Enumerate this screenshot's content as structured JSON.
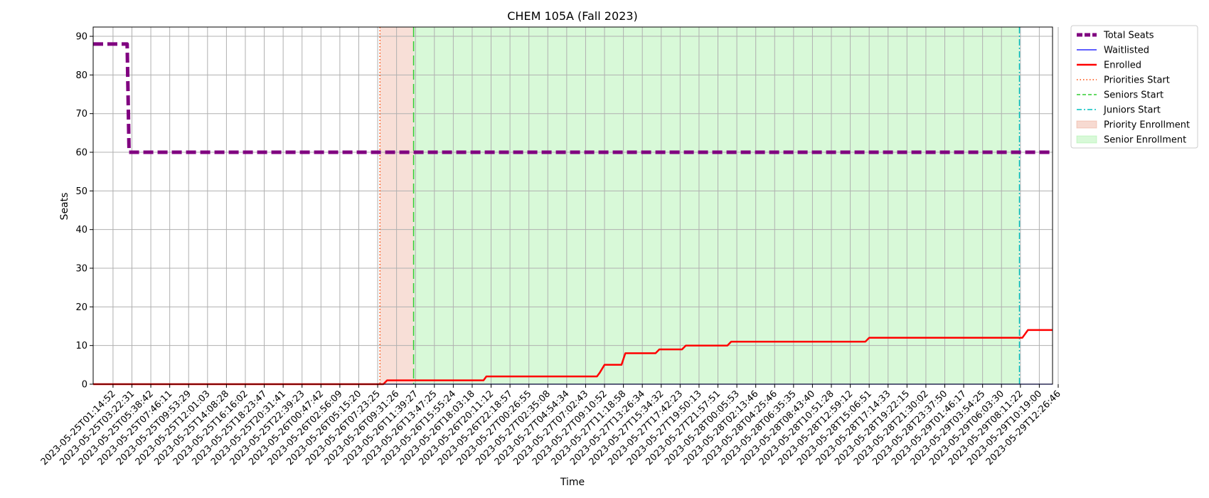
{
  "chart_data": {
    "type": "line",
    "title": "CHEM 105A (Fall 2023)",
    "xlabel": "Time",
    "ylabel": "Seats",
    "ylim": [
      0,
      92.4
    ],
    "yticks": [
      0,
      10,
      20,
      30,
      40,
      50,
      60,
      70,
      80,
      90
    ],
    "grid": true,
    "legend_placement": "outside right, top",
    "x_tick_labels": [
      "2023-05-25T01:14:52",
      "2023-05-25T03:22:31",
      "2023-05-25T05:38:42",
      "2023-05-25T07:46:11",
      "2023-05-25T09:53:29",
      "2023-05-25T12:01:03",
      "2023-05-25T14:08:28",
      "2023-05-25T16:16:02",
      "2023-05-25T18:23:47",
      "2023-05-25T20:31:41",
      "2023-05-25T22:39:23",
      "2023-05-26T00:47:42",
      "2023-05-26T02:56:09",
      "2023-05-26T05:15:20",
      "2023-05-26T07:23:25",
      "2023-05-26T09:31:26",
      "2023-05-26T11:39:27",
      "2023-05-26T13:47:25",
      "2023-05-26T15:55:24",
      "2023-05-26T18:03:18",
      "2023-05-26T20:11:12",
      "2023-05-26T22:18:57",
      "2023-05-27T00:26:55",
      "2023-05-27T02:35:08",
      "2023-05-27T04:54:34",
      "2023-05-27T07:02:43",
      "2023-05-27T09:10:52",
      "2023-05-27T11:18:58",
      "2023-05-27T13:26:34",
      "2023-05-27T15:34:32",
      "2023-05-27T17:42:23",
      "2023-05-27T19:50:13",
      "2023-05-27T21:57:51",
      "2023-05-28T00:05:53",
      "2023-05-28T02:13:46",
      "2023-05-28T04:25:46",
      "2023-05-28T06:35:35",
      "2023-05-28T08:43:40",
      "2023-05-28T10:51:28",
      "2023-05-28T12:59:12",
      "2023-05-28T15:06:51",
      "2023-05-28T17:14:33",
      "2023-05-28T19:22:15",
      "2023-05-28T21:30:02",
      "2023-05-28T23:37:50",
      "2023-05-29T01:46:17",
      "2023-05-29T03:54:25",
      "2023-05-29T06:03:30",
      "2023-05-29T08:11:22",
      "2023-05-29T10:19:00",
      "2023-05-29T12:26:46"
    ],
    "x_range_ticks": [
      -1.05,
      49.7
    ],
    "series": [
      {
        "name": "Total Seats",
        "color": "#800080",
        "style": "dashed",
        "points": [
          [
            -1.05,
            88
          ],
          [
            0.75,
            88
          ],
          [
            0.85,
            60
          ],
          [
            49.7,
            60
          ]
        ]
      },
      {
        "name": "Waitlisted",
        "color": "#0000ff",
        "style": "solid",
        "points": [
          [
            -1.05,
            0
          ],
          [
            49.7,
            0
          ]
        ]
      },
      {
        "name": "Enrolled",
        "color": "#ff0000",
        "style": "solid",
        "points": [
          [
            -1.05,
            0
          ],
          [
            14.3,
            0
          ],
          [
            14.5,
            1
          ],
          [
            19.6,
            1
          ],
          [
            19.75,
            2
          ],
          [
            25.6,
            2
          ],
          [
            25.75,
            3
          ],
          [
            26.0,
            5
          ],
          [
            26.9,
            5
          ],
          [
            27.1,
            8
          ],
          [
            28.7,
            8
          ],
          [
            28.9,
            9
          ],
          [
            30.1,
            9
          ],
          [
            30.3,
            10
          ],
          [
            32.5,
            10
          ],
          [
            32.7,
            11
          ],
          [
            39.8,
            11
          ],
          [
            40.0,
            12
          ],
          [
            48.1,
            12
          ],
          [
            48.4,
            14
          ],
          [
            49.7,
            14
          ]
        ]
      }
    ],
    "markers": [
      {
        "name": "Priorities Start",
        "x": 14.12,
        "color": "#ff4500",
        "style": "dotted"
      },
      {
        "name": "Seniors Start",
        "x": 15.9,
        "color": "#32cd32",
        "style": "dashed"
      },
      {
        "name": "Juniors Start",
        "x": 47.95,
        "color": "#00bfbf",
        "style": "dashdot"
      }
    ],
    "spans": [
      {
        "name": "Priority Enrollment",
        "x0": 14.12,
        "x1": 15.9,
        "color": "#e9967a",
        "opacity": 0.3
      },
      {
        "name": "Senior Enrollment",
        "x0": 15.9,
        "x1": 47.95,
        "color": "#90ee90",
        "opacity": 0.35
      }
    ],
    "legend": [
      {
        "label": "Total Seats",
        "kind": "line",
        "color": "#800080",
        "style": "dashed-thick"
      },
      {
        "label": "Waitlisted",
        "kind": "line",
        "color": "#0000ff",
        "style": "solid-thin"
      },
      {
        "label": "Enrolled",
        "kind": "line",
        "color": "#ff0000",
        "style": "solid"
      },
      {
        "label": "Priorities Start",
        "kind": "line",
        "color": "#ff4500",
        "style": "dotted"
      },
      {
        "label": "Seniors Start",
        "kind": "line",
        "color": "#32cd32",
        "style": "dashed"
      },
      {
        "label": "Juniors Start",
        "kind": "line",
        "color": "#00bfbf",
        "style": "dashdot"
      },
      {
        "label": "Priority Enrollment",
        "kind": "patch",
        "color": "#e9967a"
      },
      {
        "label": "Senior Enrollment",
        "kind": "patch",
        "color": "#90ee90"
      }
    ]
  }
}
